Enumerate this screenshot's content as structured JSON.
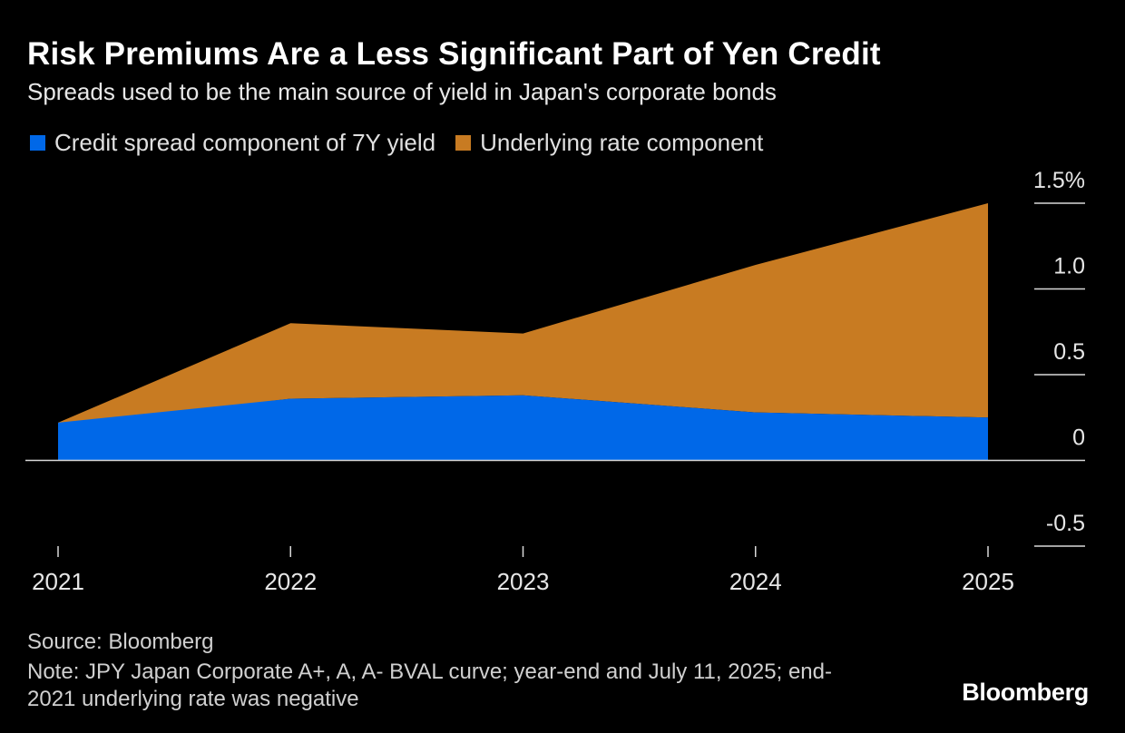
{
  "title": "Risk Premiums Are a Less Significant Part of Yen Credit",
  "subtitle": "Spreads used to be the main source of yield in Japan's corporate bonds",
  "legend": {
    "spread_label": "Credit spread component of 7Y yield",
    "rate_label": "Underlying rate component"
  },
  "colors": {
    "spread": "#0068e8",
    "rate": "#c87b22",
    "background": "#000000"
  },
  "chart_data": {
    "type": "area",
    "stacked": true,
    "x": [
      2021,
      2022,
      2023,
      2024,
      2025
    ],
    "x_tick_labels": [
      "2021",
      "2022",
      "2023",
      "2024",
      "2025"
    ],
    "y_tick_values": [
      1.5,
      1.0,
      0.5,
      0,
      -0.5
    ],
    "y_tick_labels": [
      "1.5%",
      "1.0",
      "0.5",
      "0",
      "-0.5"
    ],
    "ylim": [
      -0.5,
      1.5
    ],
    "series": [
      {
        "name": "Credit spread component of 7Y yield",
        "points": [
          [
            2021,
            0.22
          ],
          [
            2022,
            0.36
          ],
          [
            2023,
            0.38
          ],
          [
            2024,
            0.28
          ],
          [
            2025,
            0.25
          ]
        ]
      },
      {
        "name": "Underlying rate component",
        "points": [
          [
            2021,
            -0.02
          ],
          [
            2022,
            0.44
          ],
          [
            2023,
            0.36
          ],
          [
            2024,
            0.86
          ],
          [
            2025,
            1.25
          ]
        ]
      }
    ],
    "total_yield": [
      [
        2021,
        0.24
      ],
      [
        2022,
        0.8
      ],
      [
        2023,
        0.74
      ],
      [
        2024,
        1.14
      ],
      [
        2025,
        1.5
      ]
    ],
    "annotation_notes": "end-2021 underlying rate was negative"
  },
  "footer": {
    "source": "Source: Bloomberg",
    "note": "Note: JPY Japan Corporate A+, A, A- BVAL curve; year-end and July 11, 2025; end-2021 underlying rate was negative",
    "brand": "Bloomberg"
  }
}
